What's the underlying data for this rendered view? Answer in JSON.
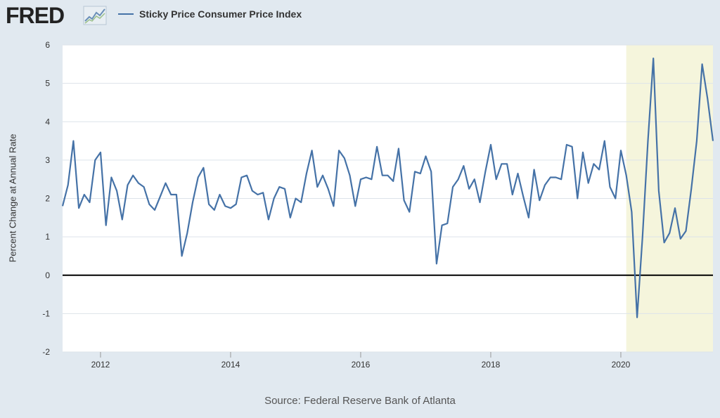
{
  "header": {
    "logo_text": "FRED",
    "logo_mark": "trend-line-icon"
  },
  "source_note": "Source: Federal Reserve Bank of Atlanta",
  "colors": {
    "series": "#4572a7",
    "recession": "#f5f5dc",
    "background": "#e1e9f0",
    "plot": "#ffffff"
  },
  "chart_data": {
    "type": "line",
    "xlabel": "",
    "ylabel": "Percent Change at Annual Rate",
    "ylim": [
      -2,
      6
    ],
    "xlim": [
      "2011-06",
      "2021-06"
    ],
    "y_ticks": [
      "6",
      "5",
      "4",
      "3",
      "2",
      "1",
      "0",
      "-1",
      "-2"
    ],
    "x_ticks": [
      "2012",
      "2014",
      "2016",
      "2018",
      "2020"
    ],
    "grid": "horizontal",
    "zero_line": true,
    "legend": "top-left",
    "recession_shading": [
      {
        "start": "2020-02",
        "end": "2021-06"
      }
    ],
    "series": [
      {
        "name": "Sticky Price Consumer Price Index",
        "x": [
          "2011-06",
          "2011-07",
          "2011-08",
          "2011-09",
          "2011-10",
          "2011-11",
          "2011-12",
          "2012-01",
          "2012-02",
          "2012-03",
          "2012-04",
          "2012-05",
          "2012-06",
          "2012-07",
          "2012-08",
          "2012-09",
          "2012-10",
          "2012-11",
          "2012-12",
          "2013-01",
          "2013-02",
          "2013-03",
          "2013-04",
          "2013-05",
          "2013-06",
          "2013-07",
          "2013-08",
          "2013-09",
          "2013-10",
          "2013-11",
          "2013-12",
          "2014-01",
          "2014-02",
          "2014-03",
          "2014-04",
          "2014-05",
          "2014-06",
          "2014-07",
          "2014-08",
          "2014-09",
          "2014-10",
          "2014-11",
          "2014-12",
          "2015-01",
          "2015-02",
          "2015-03",
          "2015-04",
          "2015-05",
          "2015-06",
          "2015-07",
          "2015-08",
          "2015-09",
          "2015-10",
          "2015-11",
          "2015-12",
          "2016-01",
          "2016-02",
          "2016-03",
          "2016-04",
          "2016-05",
          "2016-06",
          "2016-07",
          "2016-08",
          "2016-09",
          "2016-10",
          "2016-11",
          "2016-12",
          "2017-01",
          "2017-02",
          "2017-03",
          "2017-04",
          "2017-05",
          "2017-06",
          "2017-07",
          "2017-08",
          "2017-09",
          "2017-10",
          "2017-11",
          "2017-12",
          "2018-01",
          "2018-02",
          "2018-03",
          "2018-04",
          "2018-05",
          "2018-06",
          "2018-07",
          "2018-08",
          "2018-09",
          "2018-10",
          "2018-11",
          "2018-12",
          "2019-01",
          "2019-02",
          "2019-03",
          "2019-04",
          "2019-05",
          "2019-06",
          "2019-07",
          "2019-08",
          "2019-09",
          "2019-10",
          "2019-11",
          "2019-12",
          "2020-01",
          "2020-02",
          "2020-03",
          "2020-04",
          "2020-05",
          "2020-06",
          "2020-07",
          "2020-08",
          "2020-09",
          "2020-10",
          "2020-11",
          "2020-12",
          "2021-01",
          "2021-02",
          "2021-03",
          "2021-04",
          "2021-05",
          "2021-06"
        ],
        "values": [
          1.8,
          2.35,
          3.5,
          1.75,
          2.1,
          1.9,
          3.0,
          3.2,
          1.3,
          2.55,
          2.2,
          1.45,
          2.35,
          2.6,
          2.4,
          2.3,
          1.85,
          1.7,
          2.05,
          2.4,
          2.1,
          2.1,
          0.5,
          1.1,
          1.9,
          2.55,
          2.8,
          1.85,
          1.7,
          2.1,
          1.8,
          1.75,
          1.85,
          2.55,
          2.6,
          2.2,
          2.1,
          2.15,
          1.45,
          2.0,
          2.3,
          2.25,
          1.5,
          2.0,
          1.9,
          2.65,
          3.25,
          2.3,
          2.6,
          2.25,
          1.8,
          3.25,
          3.05,
          2.6,
          1.8,
          2.5,
          2.55,
          2.5,
          3.35,
          2.6,
          2.6,
          2.45,
          3.3,
          1.95,
          1.65,
          2.7,
          2.65,
          3.1,
          2.7,
          0.3,
          1.3,
          1.35,
          2.3,
          2.5,
          2.85,
          2.25,
          2.5,
          1.9,
          2.7,
          3.4,
          2.5,
          2.9,
          2.9,
          2.1,
          2.65,
          2.05,
          1.5,
          2.75,
          1.95,
          2.35,
          2.55,
          2.55,
          2.5,
          3.4,
          3.35,
          2.0,
          3.2,
          2.4,
          2.9,
          2.75,
          3.5,
          2.3,
          2.0,
          3.25,
          2.6,
          1.65,
          -1.1,
          1.0,
          3.5,
          5.65,
          2.2,
          0.85,
          1.1,
          1.75,
          0.95,
          1.15,
          2.25,
          3.5,
          5.5,
          4.6,
          3.5
        ]
      }
    ]
  }
}
